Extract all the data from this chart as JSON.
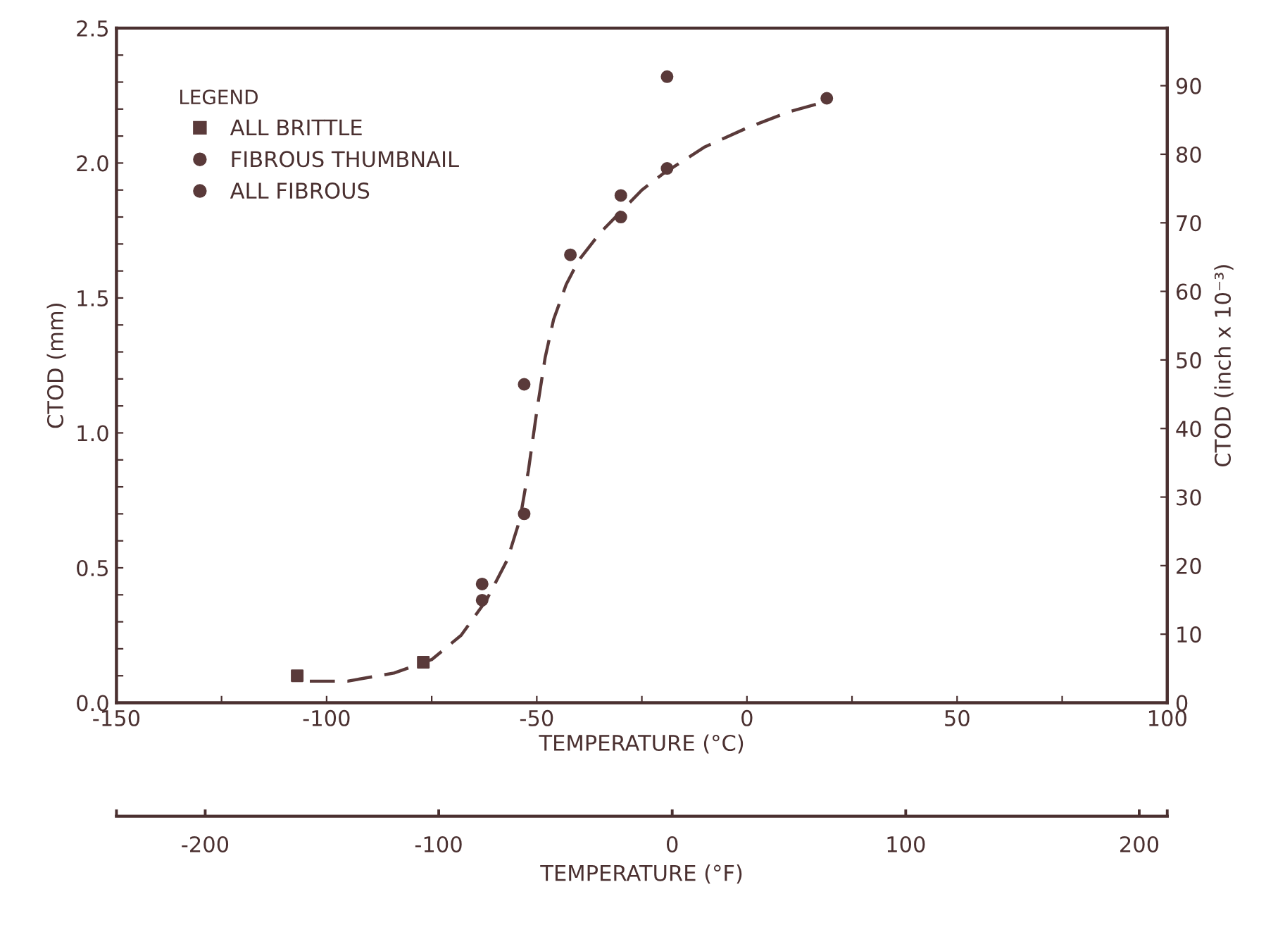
{
  "chart_data": {
    "type": "scatter",
    "xlabel": "TEMPERATURE (°C)",
    "ylabel": "CTOD (mm)",
    "y2label": "CTOD (inch x 10⁻³)",
    "x2label": "TEMPERATURE (°F)",
    "legend_title": "LEGEND",
    "legend": "top left",
    "grid": false,
    "xlim": [
      -150,
      100
    ],
    "xticks": [
      -150,
      {
        "value": -125,
        "label": null
      },
      -100,
      {
        "value": -75,
        "label": null
      },
      -50,
      {
        "value": -25,
        "label": null
      },
      0,
      {
        "value": 25,
        "label": null
      },
      50,
      {
        "value": 75,
        "label": null
      },
      100
    ],
    "ylim": [
      0,
      2.5
    ],
    "yticks": [
      {
        "value": 0,
        "label": "0.0"
      },
      {
        "value": 0.1,
        "label": null
      },
      {
        "value": 0.2,
        "label": null
      },
      {
        "value": 0.3,
        "label": null
      },
      {
        "value": 0.4,
        "label": null
      },
      0.5,
      {
        "value": 0.6,
        "label": null
      },
      {
        "value": 0.7,
        "label": null
      },
      {
        "value": 0.8,
        "label": null
      },
      {
        "value": 0.9,
        "label": null
      },
      {
        "value": 1,
        "label": "1.0"
      },
      {
        "value": 1.1,
        "label": null
      },
      {
        "value": 1.2,
        "label": null
      },
      {
        "value": 1.3,
        "label": null
      },
      {
        "value": 1.4,
        "label": null
      },
      1.5,
      {
        "value": 1.6,
        "label": null
      },
      {
        "value": 1.7,
        "label": null
      },
      {
        "value": 1.8,
        "label": null
      },
      {
        "value": 1.9,
        "label": null
      },
      {
        "value": 2,
        "label": "2.0"
      },
      {
        "value": 2.1,
        "label": null
      },
      {
        "value": 2.2,
        "label": null
      },
      {
        "value": 2.3,
        "label": null
      },
      {
        "value": 2.4,
        "label": null
      },
      2.5
    ],
    "y2lim": [
      0,
      98.4
    ],
    "y2ticks": [
      0,
      10,
      20,
      30,
      40,
      50,
      60,
      70,
      80,
      90
    ],
    "x2lim": [
      -238,
      212
    ],
    "x2ticks": [
      {
        "value": -238,
        "label": null
      },
      -200,
      -100,
      0,
      100,
      200,
      {
        "value": 212,
        "label": null
      }
    ],
    "series": [
      {
        "name": "ALL BRITTLE",
        "marker": "square",
        "color": "#5a3a3a",
        "x": [
          -107,
          -77
        ],
        "values": [
          0.1,
          0.15
        ]
      },
      {
        "name": "FIBROUS THUMBNAIL",
        "marker": "circle",
        "color": "#5a3a3a",
        "x": [
          -63,
          -63,
          -53,
          -53,
          -42
        ],
        "values": [
          0.44,
          0.38,
          0.7,
          1.18,
          1.66
        ]
      },
      {
        "name": "ALL FIBROUS",
        "marker": "circle",
        "color": "#5a3a3a",
        "x": [
          -30,
          -30,
          -19,
          -19,
          19
        ],
        "values": [
          1.8,
          1.88,
          1.98,
          2.32,
          2.24
        ]
      },
      {
        "type": "line",
        "line_style": "dashed",
        "color": "#5a3a3a",
        "x": [
          -104,
          -95,
          -84,
          -75,
          -68,
          -62,
          -57,
          -54,
          -52,
          -50,
          -48,
          -46,
          -43,
          -40,
          -35,
          -30,
          -25,
          -20,
          -10,
          0,
          10,
          17
        ],
        "values": [
          0.08,
          0.08,
          0.11,
          0.16,
          0.25,
          0.38,
          0.53,
          0.68,
          0.86,
          1.08,
          1.28,
          1.42,
          1.55,
          1.64,
          1.74,
          1.82,
          1.9,
          1.96,
          2.06,
          2.13,
          2.19,
          2.22
        ]
      }
    ]
  }
}
